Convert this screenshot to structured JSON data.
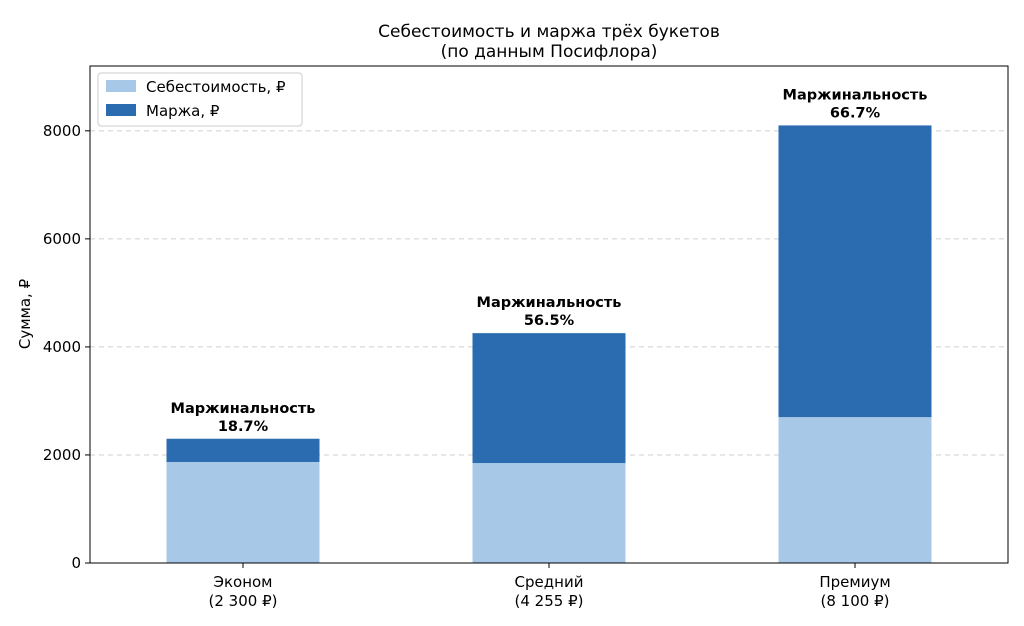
{
  "chart_data": {
    "type": "bar",
    "stacked": true,
    "title": "Себестоимость и маржа трёх букетов",
    "subtitle": "(по данным Посифлора)",
    "xlabel": "",
    "ylabel": "Сумма, ₽",
    "ylim": [
      0,
      9200
    ],
    "yticks": [
      0,
      2000,
      4000,
      6000,
      8000
    ],
    "grid": true,
    "legend_position": "top-left",
    "categories": [
      "Эконом",
      "Средний",
      "Премиум"
    ],
    "category_sublabels": [
      "(2 300 ₽)",
      "(4 255 ₽)",
      "(8 100 ₽)"
    ],
    "series": [
      {
        "name": "Себестоимость, ₽",
        "color": "#a8c8e8",
        "values": [
          1870,
          1850,
          2700
        ]
      },
      {
        "name": "Маржа, ₽",
        "color": "#2b6cb0",
        "values": [
          430,
          2405,
          5400
        ]
      }
    ],
    "annotations": [
      {
        "label": "Маржинальность",
        "value": "18.7%"
      },
      {
        "label": "Маржинальность",
        "value": "56.5%"
      },
      {
        "label": "Маржинальность",
        "value": "66.7%"
      }
    ]
  }
}
